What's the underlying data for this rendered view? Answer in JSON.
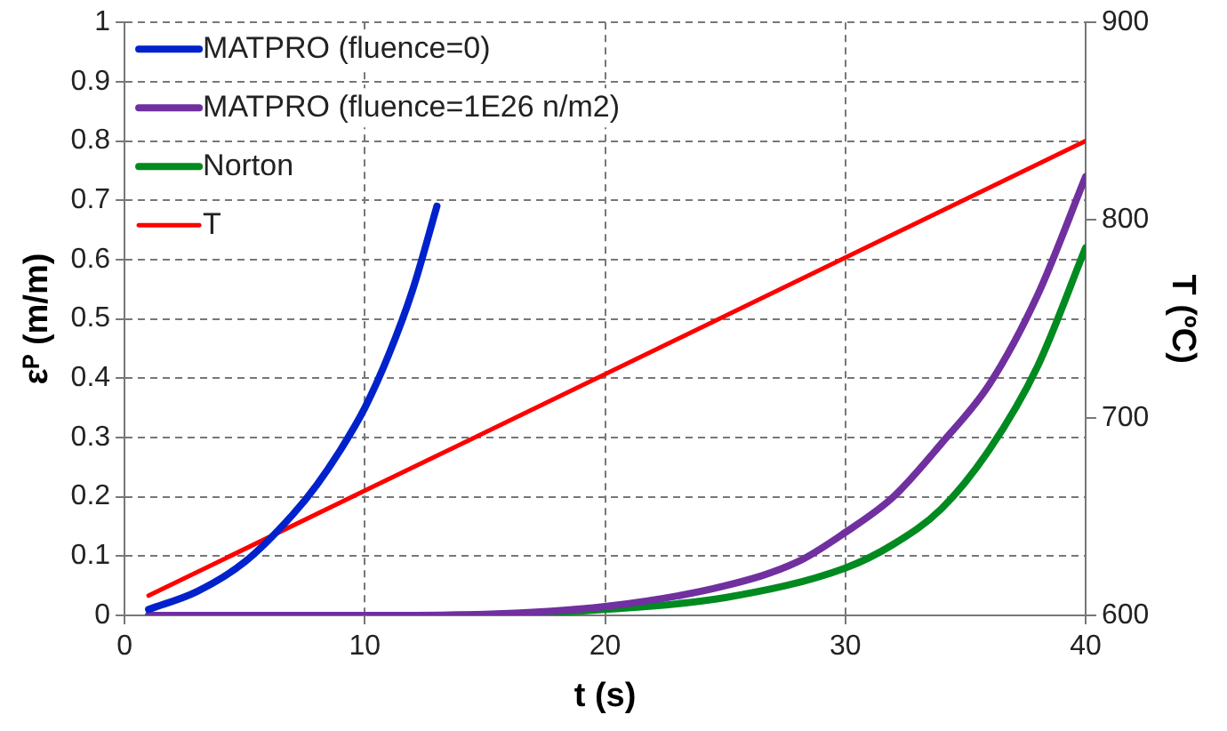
{
  "chart_data": {
    "type": "line",
    "xlabel": "t (s)",
    "ylabel": "εᴾ (m/m)",
    "y2label": "T (ºC)",
    "xlim": [
      0,
      40
    ],
    "xticks": [
      0,
      10,
      20,
      30,
      40
    ],
    "ylim": [
      0,
      1
    ],
    "yticks": [
      0,
      0.1,
      0.2,
      0.3,
      0.4,
      0.5,
      0.6,
      0.7,
      0.8,
      0.9,
      1
    ],
    "y2lim": [
      600,
      900
    ],
    "y2ticks": [
      600,
      700,
      800,
      900
    ],
    "grid": true,
    "legend": "top left",
    "marker": "none",
    "line_style": "solid",
    "series": [
      {
        "name": "MATPRO (fluence=0)",
        "color": "#0022cc",
        "x": [
          1,
          3,
          5,
          7,
          8,
          9,
          10,
          11,
          12,
          13
        ],
        "values": [
          0.01,
          0.04,
          0.09,
          0.17,
          0.22,
          0.28,
          0.35,
          0.44,
          0.55,
          0.69
        ]
      },
      {
        "name": "MATPRO (fluence=1E26 n/m2)",
        "color": "#7030a0",
        "x": [
          1,
          10,
          15,
          20,
          25,
          28,
          30,
          32,
          34,
          36,
          38,
          40
        ],
        "values": [
          0,
          0,
          0.002,
          0.015,
          0.05,
          0.09,
          0.14,
          0.2,
          0.29,
          0.39,
          0.54,
          0.74
        ]
      },
      {
        "name": "Norton",
        "color": "#008a20",
        "x": [
          1,
          10,
          15,
          20,
          25,
          30,
          32,
          34,
          36,
          38,
          40
        ],
        "values": [
          0,
          0,
          0.001,
          0.01,
          0.03,
          0.08,
          0.12,
          0.18,
          0.28,
          0.42,
          0.62
        ]
      },
      {
        "name": "T",
        "color": "#ff0000",
        "axis": "y2",
        "x": [
          1,
          40
        ],
        "values": [
          610,
          840
        ]
      }
    ]
  }
}
